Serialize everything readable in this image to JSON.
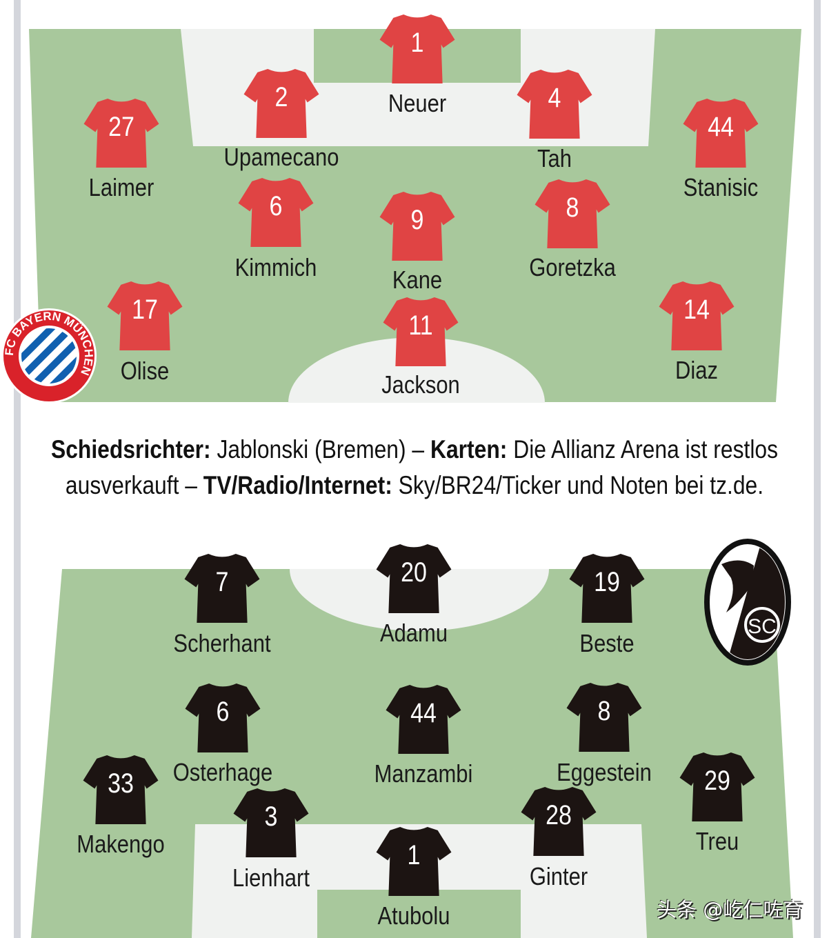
{
  "colors": {
    "pitch": "#a8c89c",
    "home_shirt": "#e04444",
    "away_shirt": "#1c1412",
    "text": "#111111"
  },
  "home": {
    "club": "FC Bayern München",
    "logo_text": "FC BAYERN MÜNCHEN",
    "players": [
      {
        "number": "1",
        "name": "Neuer"
      },
      {
        "number": "2",
        "name": "Upamecano"
      },
      {
        "number": "4",
        "name": "Tah"
      },
      {
        "number": "27",
        "name": "Laimer"
      },
      {
        "number": "44",
        "name": "Stanisic"
      },
      {
        "number": "6",
        "name": "Kimmich"
      },
      {
        "number": "9",
        "name": "Kane"
      },
      {
        "number": "8",
        "name": "Goretzka"
      },
      {
        "number": "17",
        "name": "Olise"
      },
      {
        "number": "11",
        "name": "Jackson"
      },
      {
        "number": "14",
        "name": "Diaz"
      }
    ]
  },
  "info": {
    "referee_label": "Schiedsrichter:",
    "referee_text": " Jablonski (Bremen) – ",
    "tickets_label": "Karten:",
    "tickets_text": " Die Allianz Arena ist restlos ausverkauft – ",
    "media_label": "TV/Radio/Internet:",
    "media_text": " Sky/BR24/Ticker und Noten bei tz.de."
  },
  "away": {
    "club": "SC Freiburg",
    "logo_text": "SC",
    "players": [
      {
        "number": "7",
        "name": "Scherhant"
      },
      {
        "number": "20",
        "name": "Adamu"
      },
      {
        "number": "19",
        "name": "Beste"
      },
      {
        "number": "6",
        "name": "Osterhage"
      },
      {
        "number": "44",
        "name": "Manzambi"
      },
      {
        "number": "8",
        "name": "Eggestein"
      },
      {
        "number": "33",
        "name": "Makengo"
      },
      {
        "number": "29",
        "name": "Treu"
      },
      {
        "number": "3",
        "name": "Lienhart"
      },
      {
        "number": "28",
        "name": "Ginter"
      },
      {
        "number": "1",
        "name": "Atubolu"
      }
    ]
  },
  "watermark": "头条 @屹仁咗育"
}
